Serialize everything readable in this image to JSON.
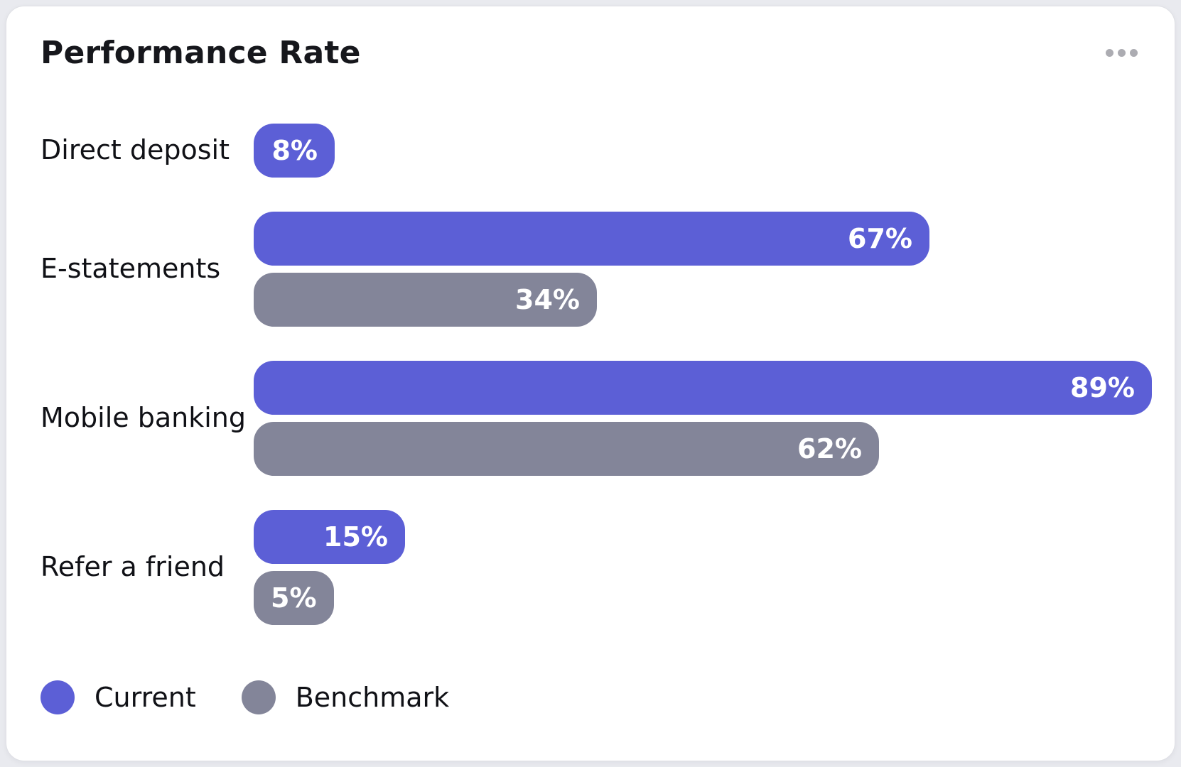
{
  "chart_data": {
    "type": "bar",
    "orientation": "horizontal",
    "title": "Performance Rate",
    "categories": [
      "Direct deposit",
      "E-statements",
      "Mobile banking",
      "Refer a friend"
    ],
    "series": [
      {
        "name": "Current",
        "color": "#5c5fd6",
        "values": [
          8,
          67,
          89,
          15
        ]
      },
      {
        "name": "Benchmark",
        "color": "#838599",
        "values": [
          null,
          34,
          62,
          5
        ]
      }
    ],
    "value_suffix": "%",
    "xlim": [
      0,
      100
    ],
    "grid": false,
    "legend_position": "bottom",
    "legend": [
      "Current",
      "Benchmark"
    ]
  },
  "header": {
    "menu_icon": "ellipsis-icon"
  },
  "colors": {
    "current": "#5c5fd6",
    "benchmark": "#838599",
    "card_background": "#ffffff",
    "page_background": "#e9eaef",
    "text": "#101116",
    "bar_value_text": "#ffffff",
    "menu_dots": "#acacb2"
  }
}
